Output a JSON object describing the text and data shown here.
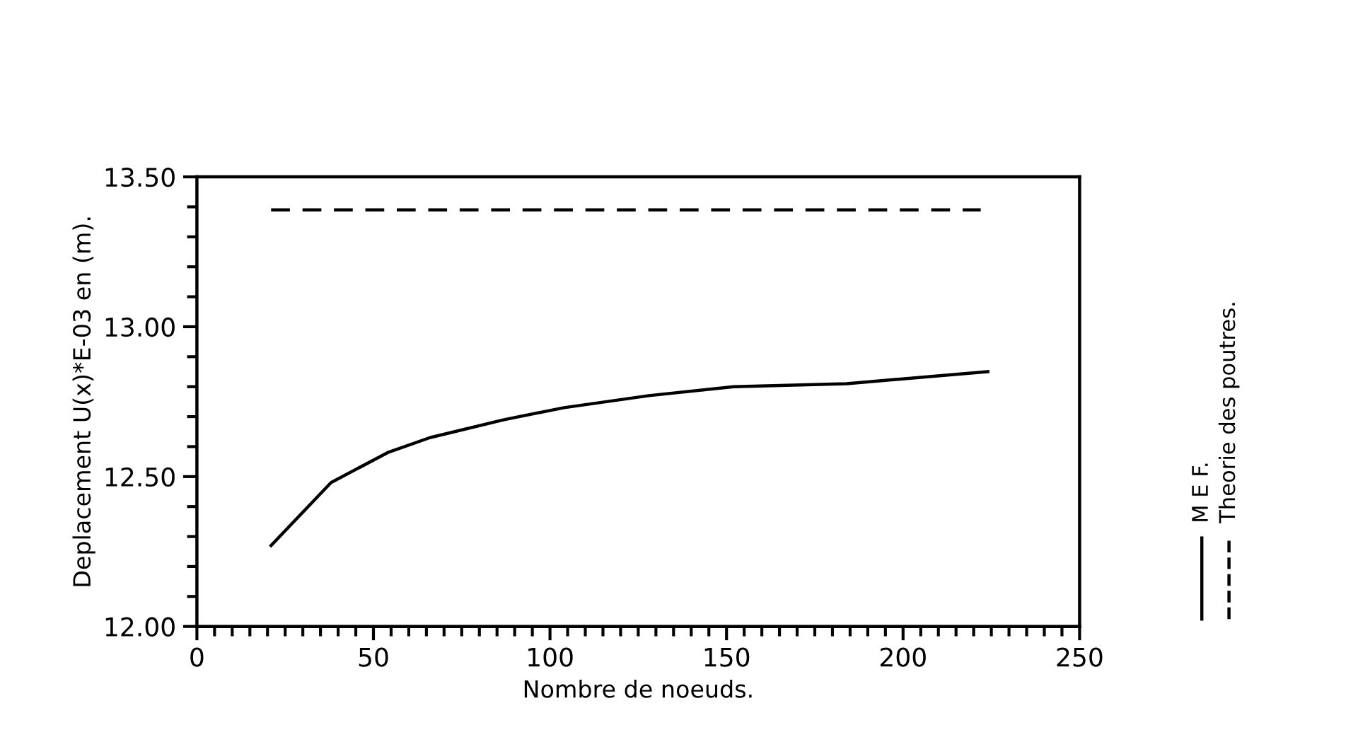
{
  "chart_data": {
    "type": "line",
    "xlabel": "Nombre de noeuds.",
    "ylabel": "Deplacement U(x)*E-03 en (m).",
    "xlim": [
      0,
      250
    ],
    "xticks": [
      0,
      50,
      100,
      150,
      200,
      250
    ],
    "ylim": [
      12.0,
      13.5
    ],
    "yticks": [
      {
        "value": 12.0,
        "label": "12.00"
      },
      {
        "value": 12.5,
        "label": "12.50"
      },
      {
        "value": 13.0,
        "label": "13.00"
      },
      {
        "value": 13.5,
        "label": "13.50"
      }
    ],
    "grid": false,
    "legend": "right",
    "marker": "none",
    "series": [
      {
        "name": "M E F.",
        "color": "#000000",
        "line_style": "solid",
        "x": [
          21,
          38,
          54,
          66,
          87,
          104,
          128,
          152,
          184,
          224
        ],
        "values": [
          12.27,
          12.48,
          12.58,
          12.63,
          12.69,
          12.73,
          12.77,
          12.8,
          12.81,
          12.85
        ]
      },
      {
        "name": "Theorie des poutres.",
        "color": "#000000",
        "line_style": "dashed",
        "x": [
          21,
          222
        ],
        "values": [
          13.39,
          13.39
        ]
      }
    ]
  }
}
